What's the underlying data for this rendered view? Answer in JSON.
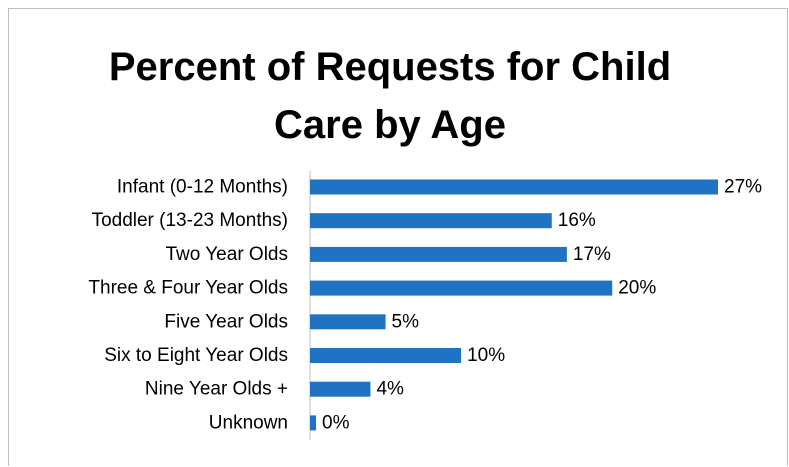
{
  "chart_data": {
    "type": "bar",
    "orientation": "horizontal",
    "title_lines": [
      "Percent of Requests for Child",
      "Care by Age"
    ],
    "categories": [
      "Infant (0-12 Months)",
      "Toddler (13-23 Months)",
      "Two Year Olds",
      "Three & Four Year Olds",
      "Five Year Olds",
      "Six to Eight Year Olds",
      "Nine Year Olds +",
      "Unknown"
    ],
    "values": [
      27,
      16,
      17,
      20,
      5,
      10,
      4,
      0.4
    ],
    "data_labels": [
      "27%",
      "16%",
      "17%",
      "20%",
      "5%",
      "10%",
      "4%",
      "0%"
    ],
    "bar_color": "#1f73c2",
    "xlim": [
      0,
      27
    ],
    "grid": false,
    "legend": "none"
  }
}
